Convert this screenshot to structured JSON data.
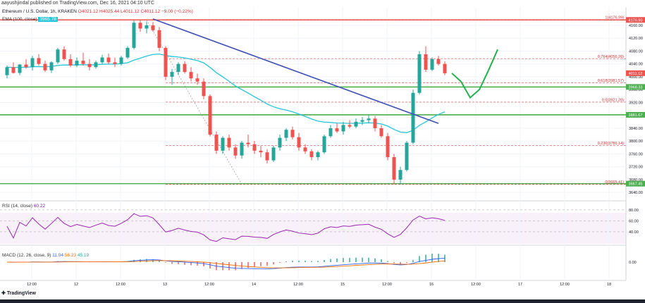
{
  "publisher": "aayushjindal published on TradingView.com, Dec 16, 2021 04:10 UTC",
  "header": {
    "symbol": "Ethereum / U.S. Dollar, 1h, KRAKEN",
    "ohlc": "O4021.12 H4025.44 L4011.12 C4011.12 −9.00 (−0.22%)"
  },
  "ema_legend": {
    "label": "EMA (100, close)",
    "value": "3965.78"
  },
  "rsi_legend": {
    "label": "RSI (14, close)",
    "value": "60.22"
  },
  "macd_legend": {
    "label": "MACD (12, 26, close, 9)",
    "v1": "11.04",
    "v2": "56.23",
    "v3": "45.19"
  },
  "tv_logo": "TradingView",
  "colors": {
    "up": "#26a69a",
    "down": "#ef5350",
    "ema": "#26c6da",
    "trendline": "#3f51b5",
    "support": "#4caf50",
    "resistance": "#ef5350",
    "fib": "#d32f2f",
    "rsi": "#9c27b0",
    "arrow": "#22b14c"
  },
  "chart_data": {
    "type": "candlestick",
    "price_ticks": [
      "4160.00",
      "4120.00",
      "4080.00",
      "4040.00",
      "4000.00",
      "3960.00",
      "3920.00",
      "3880.00",
      "3840.00",
      "3800.00",
      "3760.00",
      "3720.00",
      "3680.00",
      "3640.00"
    ],
    "ylim": [
      3625,
      4195
    ],
    "time_ticks": [
      "12:00",
      "12",
      "12:00",
      "13",
      "12:00",
      "14",
      "12:00",
      "15",
      "12:00",
      "16",
      "12:00",
      "17",
      "12:00",
      "18"
    ],
    "price_badges": [
      {
        "label": "4176.90",
        "value": 4176.9,
        "color": "#ef5350"
      },
      {
        "label": "4011.12",
        "value": 4011.12,
        "color": "#ef5350"
      },
      {
        "label": "3968.33",
        "value": 3968.33,
        "color": "#4caf50"
      },
      {
        "label": "3881.67",
        "value": 3881.67,
        "color": "#4caf50"
      },
      {
        "label": "3667.45",
        "value": 3667.45,
        "color": "#4caf50"
      }
    ],
    "horizontal_levels": [
      {
        "value": 4176.9,
        "kind": "resistance"
      },
      {
        "value": 3968.33,
        "kind": "support"
      },
      {
        "value": 3881.67,
        "kind": "support"
      },
      {
        "value": 3667.45,
        "kind": "support"
      }
    ],
    "fib_levels": [
      {
        "label": "1(4176.99)",
        "value": 4176.99
      },
      {
        "label": "0.764(4056.26)",
        "value": 4056.26
      },
      {
        "label": "0.618(3981.57)",
        "value": 3981.57
      },
      {
        "label": "0.5(3921.20)",
        "value": 3921.2
      },
      {
        "label": "0.236(3786.14)",
        "value": 3786.14
      },
      {
        "label": "0(3665.41)",
        "value": 3665.41
      }
    ],
    "candles": [
      [
        4005,
        4035,
        3995,
        4030
      ],
      [
        4030,
        4045,
        4010,
        4012
      ],
      [
        4012,
        4040,
        4005,
        4038
      ],
      [
        4038,
        4055,
        4025,
        4030
      ],
      [
        4030,
        4065,
        4020,
        4058
      ],
      [
        4058,
        4070,
        4035,
        4040
      ],
      [
        4040,
        4050,
        4015,
        4020
      ],
      [
        4020,
        4048,
        4012,
        4045
      ],
      [
        4045,
        4090,
        4040,
        4085
      ],
      [
        4085,
        4095,
        4050,
        4055
      ],
      [
        4055,
        4070,
        4030,
        4035
      ],
      [
        4035,
        4060,
        4030,
        4050
      ],
      [
        4050,
        4075,
        4035,
        4040
      ],
      [
        4040,
        4055,
        4020,
        4030
      ],
      [
        4030,
        4050,
        4025,
        4045
      ],
      [
        4045,
        4068,
        4040,
        4060
      ],
      [
        4060,
        4072,
        4040,
        4045
      ],
      [
        4045,
        4060,
        4030,
        4040
      ],
      [
        4040,
        4065,
        4035,
        4060
      ],
      [
        4060,
        4095,
        4055,
        4090
      ],
      [
        4090,
        4175,
        4085,
        4168
      ],
      [
        4168,
        4178,
        4140,
        4150
      ],
      [
        4150,
        4172,
        4135,
        4160
      ],
      [
        4160,
        4170,
        4140,
        4145
      ],
      [
        4145,
        4155,
        4080,
        4090
      ],
      [
        4090,
        4095,
        3990,
        4000
      ],
      [
        4000,
        4025,
        3975,
        4015
      ],
      [
        4015,
        4045,
        4005,
        4040
      ],
      [
        4040,
        4048,
        4010,
        4015
      ],
      [
        4015,
        4030,
        3985,
        3995
      ],
      [
        3995,
        4010,
        3975,
        3985
      ],
      [
        3985,
        3995,
        3930,
        3940
      ],
      [
        3940,
        3945,
        3815,
        3820
      ],
      [
        3820,
        3830,
        3760,
        3770
      ],
      [
        3770,
        3815,
        3760,
        3810
      ],
      [
        3810,
        3820,
        3770,
        3780
      ],
      [
        3780,
        3790,
        3745,
        3755
      ],
      [
        3755,
        3800,
        3745,
        3795
      ],
      [
        3795,
        3820,
        3780,
        3790
      ],
      [
        3790,
        3800,
        3760,
        3770
      ],
      [
        3770,
        3785,
        3750,
        3765
      ],
      [
        3765,
        3775,
        3730,
        3740
      ],
      [
        3740,
        3785,
        3735,
        3780
      ],
      [
        3780,
        3820,
        3770,
        3810
      ],
      [
        3810,
        3840,
        3800,
        3835
      ],
      [
        3835,
        3845,
        3805,
        3812
      ],
      [
        3812,
        3825,
        3770,
        3780
      ],
      [
        3780,
        3790,
        3760,
        3768
      ],
      [
        3768,
        3775,
        3740,
        3750
      ],
      [
        3750,
        3770,
        3740,
        3765
      ],
      [
        3765,
        3820,
        3760,
        3815
      ],
      [
        3815,
        3850,
        3810,
        3840
      ],
      [
        3840,
        3855,
        3825,
        3830
      ],
      [
        3830,
        3860,
        3820,
        3850
      ],
      [
        3850,
        3865,
        3840,
        3845
      ],
      [
        3845,
        3870,
        3840,
        3860
      ],
      [
        3860,
        3875,
        3850,
        3865
      ],
      [
        3865,
        3880,
        3855,
        3870
      ],
      [
        3870,
        3878,
        3830,
        3840
      ],
      [
        3840,
        3850,
        3810,
        3815
      ],
      [
        3815,
        3825,
        3740,
        3750
      ],
      [
        3750,
        3760,
        3665,
        3680
      ],
      [
        3680,
        3720,
        3665,
        3710
      ],
      [
        3710,
        3800,
        3705,
        3795
      ],
      [
        3795,
        3960,
        3790,
        3950
      ],
      [
        3950,
        4080,
        3945,
        4070
      ],
      [
        4070,
        4095,
        4015,
        4022
      ],
      [
        4022,
        4060,
        4018,
        4055
      ],
      [
        4055,
        4065,
        4035,
        4040
      ],
      [
        4040,
        4048,
        4005,
        4011
      ]
    ],
    "projection": [
      [
        0,
        4011
      ],
      [
        1,
        3985
      ],
      [
        2,
        3935
      ],
      [
        3,
        3960
      ],
      [
        4,
        4020
      ],
      [
        5,
        4085
      ]
    ],
    "rsi_ticks": [
      "80.00",
      "60.00",
      "40.00"
    ],
    "rsi_ylim": [
      18,
      90
    ],
    "macd_ticks": [
      "0.00"
    ]
  }
}
